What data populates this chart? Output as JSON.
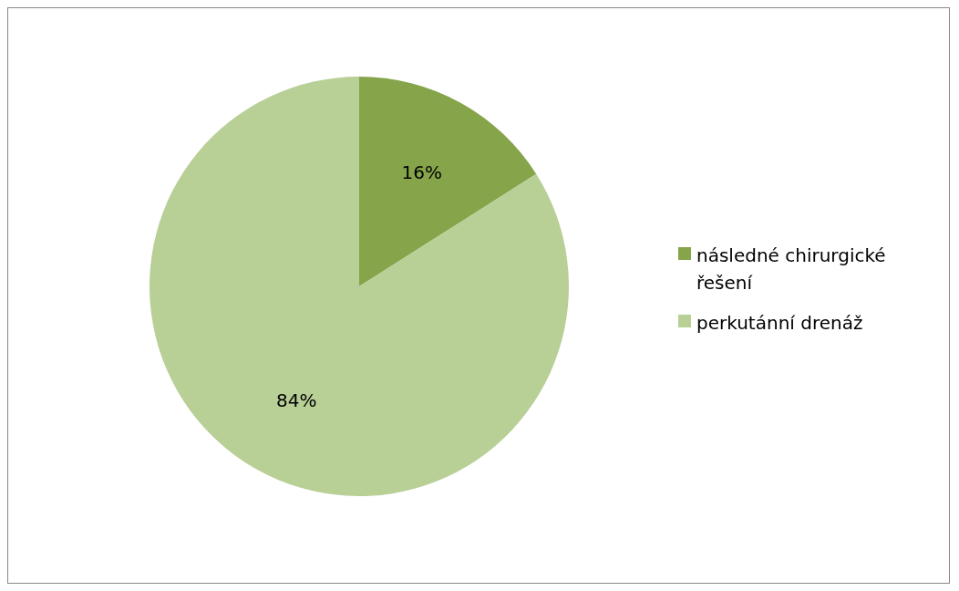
{
  "chart_data": {
    "type": "pie",
    "categories": [
      "následné chirurgické řešení",
      "perkutánní drenáž"
    ],
    "values": [
      16,
      84
    ],
    "colors": [
      "#86a44a",
      "#b8cf96"
    ],
    "value_labels": [
      "16%",
      "84%"
    ],
    "legend": "right"
  }
}
